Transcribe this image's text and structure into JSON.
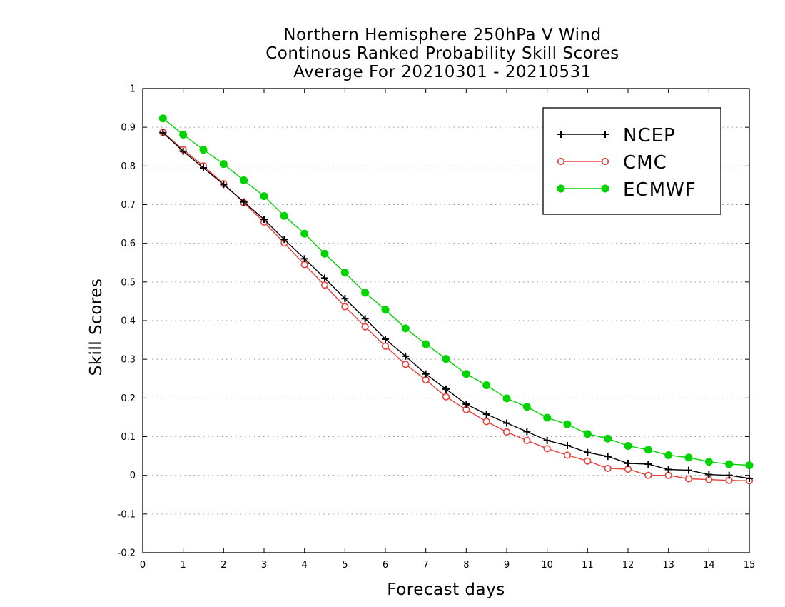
{
  "chart_data": {
    "type": "line",
    "title_lines": [
      "Northern Hemisphere 250hPa V Wind",
      "Continous Ranked Probability Skill Scores",
      "Average For 20210301 - 20210531"
    ],
    "xlabel": "Forecast days",
    "ylabel": "Skill Scores",
    "xlim": [
      0,
      15
    ],
    "ylim": [
      -0.2,
      1
    ],
    "xticks": [
      "0",
      "1",
      "2",
      "3",
      "4",
      "5",
      "6",
      "7",
      "8",
      "9",
      "10",
      "11",
      "12",
      "13",
      "14",
      "15"
    ],
    "yticks": [
      "-0.2",
      "-0.1",
      "0",
      "0.1",
      "0.2",
      "0.3",
      "0.4",
      "0.5",
      "0.6",
      "0.7",
      "0.8",
      "0.9",
      "1"
    ],
    "grid": "horizontal dotted",
    "legend_position": "top-right",
    "x": [
      0.5,
      1,
      1.5,
      2,
      2.5,
      3,
      3.5,
      4,
      4.5,
      5,
      5.5,
      6,
      6.5,
      7,
      7.5,
      8,
      8.5,
      9,
      9.5,
      10,
      10.5,
      11,
      11.5,
      12,
      12.5,
      13,
      13.5,
      14,
      14.5,
      15
    ],
    "series": [
      {
        "name": "NCEP",
        "color": "#000000",
        "marker": "plus",
        "values": [
          0.886,
          0.838,
          0.795,
          0.752,
          0.707,
          0.662,
          0.61,
          0.56,
          0.51,
          0.457,
          0.405,
          0.352,
          0.308,
          0.262,
          0.223,
          0.184,
          0.158,
          0.135,
          0.113,
          0.09,
          0.077,
          0.059,
          0.049,
          0.031,
          0.029,
          0.015,
          0.013,
          0.002,
          0.0,
          -0.008
        ]
      },
      {
        "name": "CMC",
        "color": "#e8403a",
        "marker": "open-circle",
        "values": [
          0.887,
          0.842,
          0.8,
          0.754,
          0.705,
          0.655,
          0.601,
          0.545,
          0.492,
          0.436,
          0.384,
          0.334,
          0.287,
          0.247,
          0.203,
          0.17,
          0.139,
          0.112,
          0.09,
          0.069,
          0.052,
          0.037,
          0.018,
          0.016,
          0.0,
          0.0,
          -0.009,
          -0.011,
          -0.013,
          -0.014
        ]
      },
      {
        "name": "ECMWF",
        "color": "#00d400",
        "marker": "filled-circle",
        "values": [
          0.923,
          0.881,
          0.842,
          0.805,
          0.763,
          0.722,
          0.671,
          0.625,
          0.573,
          0.524,
          0.472,
          0.428,
          0.38,
          0.339,
          0.301,
          0.262,
          0.233,
          0.199,
          0.177,
          0.149,
          0.132,
          0.107,
          0.095,
          0.076,
          0.066,
          0.052,
          0.046,
          0.035,
          0.029,
          0.026
        ]
      }
    ]
  }
}
